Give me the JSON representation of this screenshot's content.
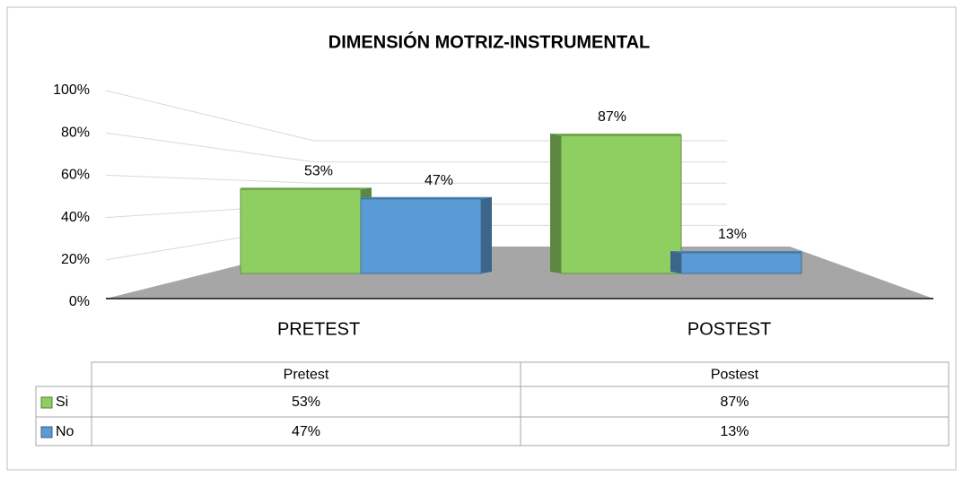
{
  "chart_data": {
    "type": "bar3d",
    "title": "DIMENSIÓN MOTRIZ-INSTRUMENTAL",
    "categories": [
      "PRETEST",
      "POSTEST"
    ],
    "table_categories": [
      "Pretest",
      "Postest"
    ],
    "series": [
      {
        "name": "Si",
        "color": "#8fcf62",
        "values": [
          53,
          87
        ],
        "value_labels": [
          "53%",
          "87%"
        ]
      },
      {
        "name": "No",
        "color": "#5b9bd5",
        "values": [
          47,
          13
        ],
        "value_labels": [
          "47%",
          "13%"
        ]
      }
    ],
    "ylim": [
      0,
      100
    ],
    "yticks": [
      {
        "value": 0,
        "label": "0%"
      },
      {
        "value": 20,
        "label": "20%"
      },
      {
        "value": 40,
        "label": "40%"
      },
      {
        "value": 60,
        "label": "60%"
      },
      {
        "value": 80,
        "label": "80%"
      },
      {
        "value": 100,
        "label": "100%"
      }
    ],
    "grid": true
  }
}
